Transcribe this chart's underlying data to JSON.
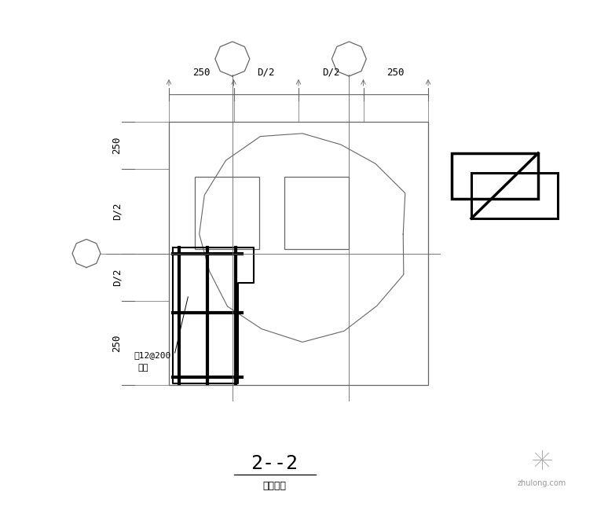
{
  "bg_color": "#ffffff",
  "line_color": "#000000",
  "thin_line_color": "#666666",
  "title_text": "2--2",
  "subtitle_text": "双桃承台",
  "annotation_text": "？12@200",
  "annotation_text2": "双向",
  "dim_top": [
    "250",
    "D/2",
    "D/2",
    "250"
  ],
  "dim_left": [
    "250",
    "D/2",
    "D/2",
    "250"
  ],
  "watermark": "zhulong.com"
}
